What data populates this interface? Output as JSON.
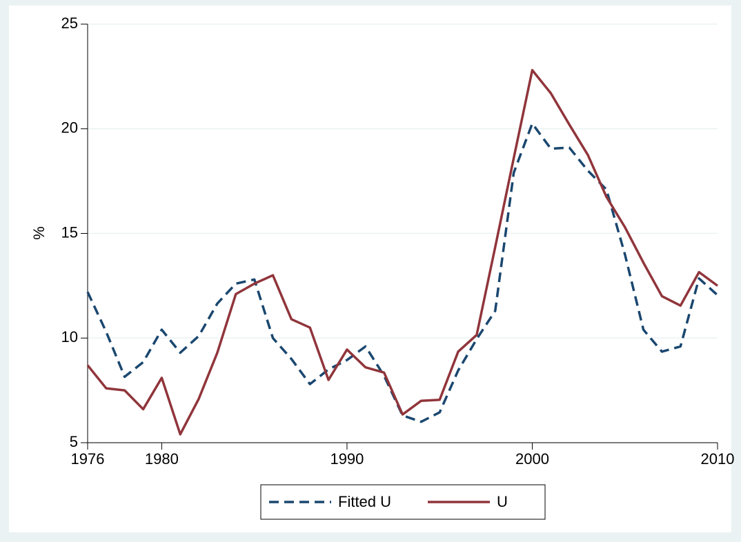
{
  "chart_data": {
    "type": "line",
    "ylabel": "%",
    "x": [
      1976,
      1977,
      1978,
      1979,
      1980,
      1981,
      1982,
      1983,
      1984,
      1985,
      1986,
      1987,
      1988,
      1989,
      1990,
      1991,
      1992,
      1993,
      1994,
      1995,
      1996,
      1997,
      1998,
      1999,
      2000,
      2001,
      2002,
      2003,
      2004,
      2005,
      2006,
      2007,
      2008,
      2009,
      2010
    ],
    "series": [
      {
        "name": "Fitted U",
        "color": "#1a476f",
        "dash": true,
        "values": [
          12.2,
          10.3,
          8.15,
          8.85,
          10.4,
          9.3,
          10.1,
          11.65,
          12.6,
          12.8,
          10.0,
          9.0,
          7.8,
          8.5,
          8.95,
          9.6,
          8.2,
          6.3,
          6.0,
          6.45,
          8.45,
          9.95,
          11.3,
          17.9,
          20.25,
          19.05,
          19.1,
          18.0,
          17.1,
          14.0,
          10.4,
          9.35,
          9.6,
          12.85,
          12.05
        ]
      },
      {
        "name": "U",
        "color": "#90353b",
        "dash": false,
        "values": [
          8.7,
          7.6,
          7.5,
          6.6,
          8.1,
          5.4,
          7.1,
          9.3,
          12.1,
          12.6,
          13.0,
          10.9,
          10.5,
          8.0,
          9.45,
          8.6,
          8.35,
          6.35,
          7.0,
          7.05,
          9.35,
          10.15,
          14.35,
          18.6,
          22.8,
          21.7,
          20.2,
          18.75,
          16.75,
          15.3,
          13.6,
          12.0,
          11.55,
          13.15,
          12.5
        ]
      }
    ],
    "xlim": [
      1976,
      2010
    ],
    "xticks": [
      1976,
      1980,
      1990,
      2000,
      2010
    ],
    "ylim": [
      5,
      25
    ],
    "yticks": [
      5,
      10,
      15,
      20,
      25
    ],
    "grid": true,
    "legend": "bottom"
  }
}
